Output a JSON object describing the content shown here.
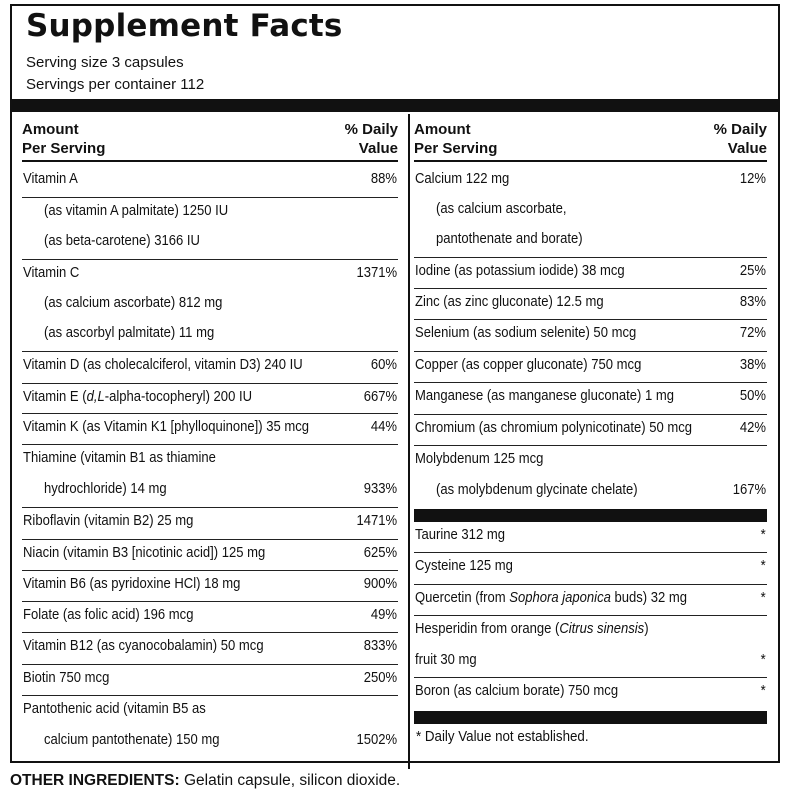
{
  "title": "Supplement Facts",
  "serving_size": "Serving size 3 capsules",
  "servings_per_container": "Servings per container 112",
  "header": {
    "amount_line1": "Amount",
    "amount_line2": "Per Serving",
    "dv_line1": "% Daily",
    "dv_line2": "Value"
  },
  "left": [
    {
      "text": "Vitamin A",
      "value": "88%"
    },
    {
      "text": "(as vitamin A palmitate) 1250 IU",
      "value": ""
    },
    {
      "text": "(as beta-carotene) 3166 IU",
      "value": ""
    },
    {
      "text": "Vitamin C",
      "value": "1371%"
    },
    {
      "text": "(as calcium ascorbate) 812 mg",
      "value": ""
    },
    {
      "text": "(as ascorbyl palmitate) 11 mg",
      "value": ""
    },
    {
      "text": "Vitamin D (as cholecalciferol, vitamin D3) 240 IU",
      "value": "60%"
    },
    {
      "text": "Vitamin E (d,L-alpha-tocopheryl) 200 IU",
      "value": "667%"
    },
    {
      "text": "Vitamin K (as Vitamin K1 [phylloquinone]) 35 mcg",
      "value": "44%"
    },
    {
      "text": "Thiamine (vitamin B1 as thiamine",
      "value": ""
    },
    {
      "text": "hydrochloride) 14 mg",
      "value": "933%"
    },
    {
      "text": "Riboflavin (vitamin B2) 25 mg",
      "value": "1471%"
    },
    {
      "text": "Niacin (vitamin B3 [nicotinic acid]) 125 mg",
      "value": "625%"
    },
    {
      "text": "Vitamin B6 (as pyridoxine HCl) 18 mg",
      "value": "900%"
    },
    {
      "text": "Folate (as folic acid) 196 mcg",
      "value": "49%"
    },
    {
      "text": "Vitamin B12 (as cyanocobalamin) 50 mcg",
      "value": "833%"
    },
    {
      "text": "Biotin 750 mcg",
      "value": "250%"
    },
    {
      "text": "Pantothenic acid (vitamin B5 as",
      "value": ""
    },
    {
      "text": "calcium pantothenate) 150 mg",
      "value": "1502%"
    }
  ],
  "right": [
    {
      "text": "Calcium 122 mg",
      "value": "12%"
    },
    {
      "text": "(as calcium ascorbate,",
      "value": ""
    },
    {
      "text": "pantothenate and borate)",
      "value": ""
    },
    {
      "text": "Iodine (as potassium iodide) 38 mcg",
      "value": "25%"
    },
    {
      "text": "Zinc (as zinc gluconate) 12.5 mg",
      "value": "83%"
    },
    {
      "text": "Selenium (as sodium selenite) 50 mcg",
      "value": "72%"
    },
    {
      "text": "Copper (as copper gluconate) 750 mcg",
      "value": "38%"
    },
    {
      "text": "Manganese (as manganese gluconate) 1 mg",
      "value": "50%"
    },
    {
      "text": "Chromium (as chromium polynicotinate) 50 mcg",
      "value": "42%"
    },
    {
      "text": "Molybdenum 125 mcg",
      "value": ""
    },
    {
      "text": "(as molybdenum glycinate chelate)",
      "value": "167%"
    },
    {
      "text": "Taurine 312 mg",
      "value": "*"
    },
    {
      "text": "Cysteine 125 mg",
      "value": "*"
    },
    {
      "text": "Quercetin (from Sophora japonica buds) 32 mg",
      "value": "*"
    },
    {
      "text": "Hesperidin from orange (Citrus sinensis)",
      "value": ""
    },
    {
      "text": "fruit 30 mg",
      "value": "*"
    },
    {
      "text": "Boron (as calcium borate) 750 mcg",
      "value": "*"
    }
  ],
  "footnote": "* Daily Value not established.",
  "other_ingredients_label": "OTHER INGREDIENTS:",
  "other_ingredients_text": " Gelatin capsule, silicon dioxide."
}
